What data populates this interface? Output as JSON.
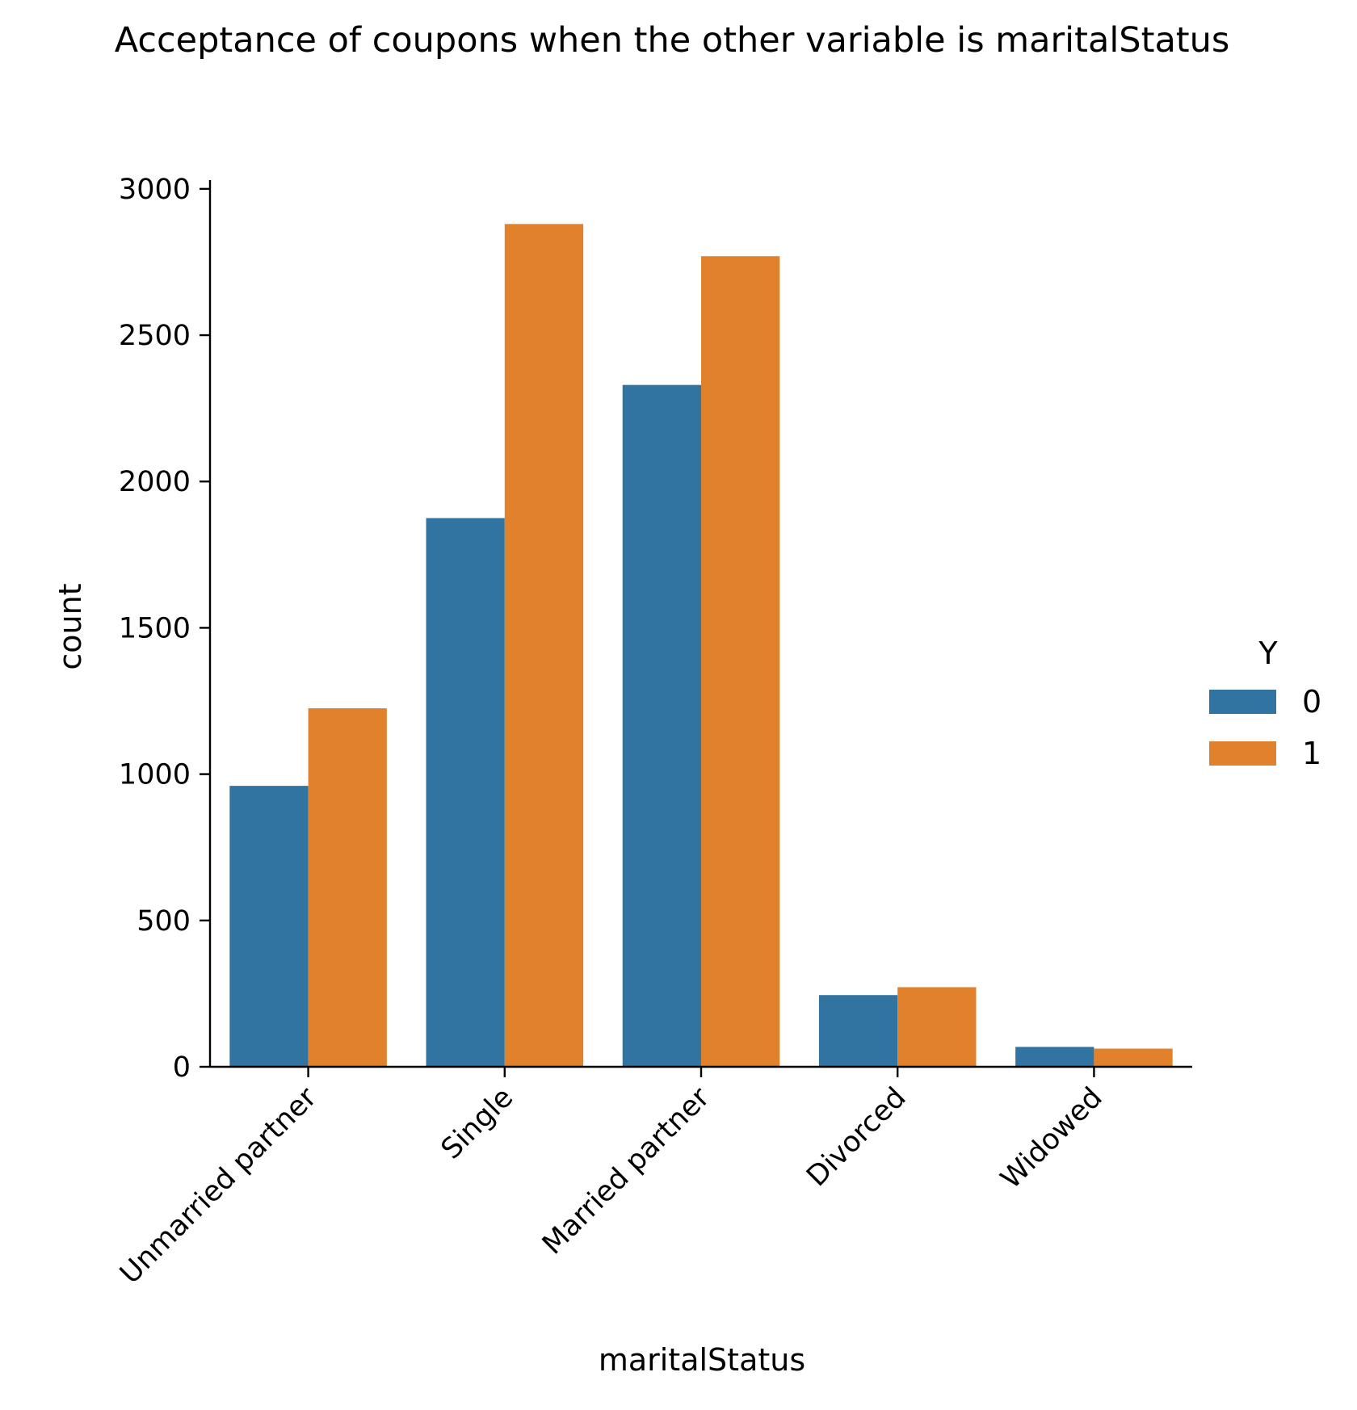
{
  "chart_data": {
    "type": "bar",
    "title": "Acceptance of coupons when the other variable is maritalStatus",
    "xlabel": "maritalStatus",
    "ylabel": "count",
    "categories": [
      "Unmarried partner",
      "Single",
      "Married partner",
      "Divorced",
      "Widowed"
    ],
    "series": [
      {
        "name": "0",
        "color": "#3274a1",
        "values": [
          960,
          1875,
          2330,
          245,
          68
        ]
      },
      {
        "name": "1",
        "color": "#e1812c",
        "values": [
          1225,
          2880,
          2770,
          272,
          62
        ]
      }
    ],
    "yticks": [
      0,
      500,
      1000,
      1500,
      2000,
      2500,
      3000
    ],
    "ylim": [
      0,
      3030
    ],
    "legend": {
      "title": "Y",
      "placement": "right"
    },
    "grid": false
  }
}
